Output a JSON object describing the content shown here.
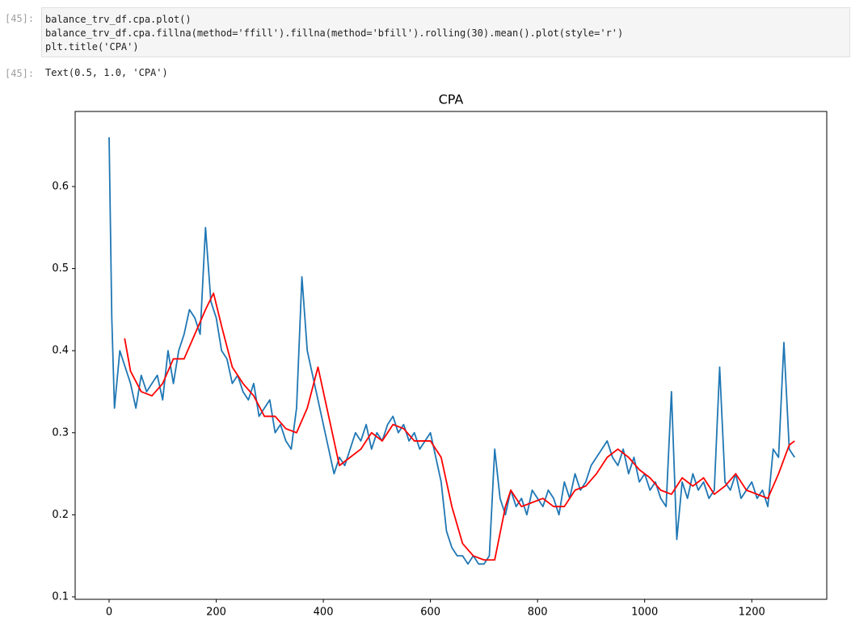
{
  "cells": {
    "input_prompt": "[45]:",
    "code": [
      "balance_trv_df.cpa.plot()",
      "balance_trv_df.cpa.fillna(method='ffill').fillna(method='bfill').rolling(30).mean().plot(style='r')",
      "plt.title('CPA')"
    ],
    "output_prompt": "[45]:",
    "output": "Text(0.5, 1.0, 'CPA')"
  },
  "chart_data": {
    "type": "line",
    "title": "CPA",
    "xlim": [
      -63.4,
      1340
    ],
    "ylim": [
      0.097,
      0.6915
    ],
    "xticks": [
      0,
      200,
      400,
      600,
      800,
      1000,
      1200
    ],
    "yticks": [
      0.1,
      0.2,
      0.3,
      0.4,
      0.5,
      0.6
    ],
    "series": [
      {
        "color": "#1f77b4",
        "x": [
          0,
          5,
          10,
          20,
          30,
          40,
          50,
          60,
          70,
          80,
          90,
          100,
          110,
          120,
          130,
          140,
          150,
          160,
          170,
          180,
          190,
          200,
          210,
          220,
          230,
          240,
          250,
          260,
          270,
          280,
          290,
          300,
          310,
          320,
          330,
          340,
          350,
          360,
          370,
          380,
          390,
          400,
          410,
          420,
          430,
          440,
          450,
          460,
          470,
          480,
          490,
          500,
          510,
          520,
          530,
          540,
          550,
          560,
          570,
          580,
          590,
          600,
          610,
          620,
          630,
          640,
          650,
          660,
          670,
          680,
          690,
          700,
          710,
          720,
          730,
          740,
          750,
          760,
          770,
          780,
          790,
          800,
          810,
          820,
          830,
          840,
          850,
          860,
          870,
          880,
          890,
          900,
          910,
          920,
          930,
          940,
          950,
          960,
          970,
          980,
          990,
          1000,
          1010,
          1020,
          1030,
          1040,
          1050,
          1060,
          1070,
          1080,
          1090,
          1100,
          1110,
          1120,
          1130,
          1140,
          1150,
          1160,
          1170,
          1180,
          1190,
          1200,
          1210,
          1220,
          1230,
          1240,
          1250,
          1260,
          1270,
          1280
        ],
        "values": [
          0.66,
          0.44,
          0.33,
          0.4,
          0.38,
          0.36,
          0.33,
          0.37,
          0.35,
          0.36,
          0.37,
          0.34,
          0.4,
          0.36,
          0.4,
          0.42,
          0.45,
          0.44,
          0.42,
          0.55,
          0.46,
          0.44,
          0.4,
          0.39,
          0.36,
          0.37,
          0.35,
          0.34,
          0.36,
          0.32,
          0.33,
          0.34,
          0.3,
          0.31,
          0.29,
          0.28,
          0.33,
          0.49,
          0.4,
          0.37,
          0.34,
          0.31,
          0.28,
          0.25,
          0.27,
          0.26,
          0.28,
          0.3,
          0.29,
          0.31,
          0.28,
          0.3,
          0.29,
          0.31,
          0.32,
          0.3,
          0.31,
          0.29,
          0.3,
          0.28,
          0.29,
          0.3,
          0.27,
          0.24,
          0.18,
          0.16,
          0.15,
          0.15,
          0.14,
          0.15,
          0.14,
          0.14,
          0.15,
          0.28,
          0.22,
          0.2,
          0.23,
          0.21,
          0.22,
          0.2,
          0.23,
          0.22,
          0.21,
          0.23,
          0.22,
          0.2,
          0.24,
          0.22,
          0.25,
          0.23,
          0.24,
          0.26,
          0.27,
          0.28,
          0.29,
          0.27,
          0.26,
          0.28,
          0.25,
          0.27,
          0.24,
          0.25,
          0.23,
          0.24,
          0.22,
          0.21,
          0.35,
          0.17,
          0.24,
          0.22,
          0.25,
          0.23,
          0.24,
          0.22,
          0.23,
          0.38,
          0.24,
          0.23,
          0.25,
          0.22,
          0.23,
          0.24,
          0.22,
          0.23,
          0.21,
          0.28,
          0.27,
          0.41,
          0.28,
          0.27
        ]
      },
      {
        "color": "#ff0000",
        "x": [
          29,
          40,
          60,
          80,
          100,
          120,
          140,
          160,
          180,
          195,
          210,
          230,
          250,
          270,
          290,
          310,
          330,
          350,
          370,
          390,
          410,
          430,
          450,
          470,
          490,
          510,
          530,
          550,
          570,
          600,
          620,
          640,
          660,
          680,
          700,
          720,
          740,
          750,
          770,
          790,
          810,
          830,
          850,
          870,
          890,
          910,
          930,
          950,
          970,
          990,
          1010,
          1030,
          1050,
          1070,
          1090,
          1110,
          1130,
          1150,
          1170,
          1190,
          1210,
          1230,
          1250,
          1270,
          1280
        ],
        "values": [
          0.415,
          0.375,
          0.35,
          0.345,
          0.36,
          0.39,
          0.39,
          0.42,
          0.45,
          0.47,
          0.43,
          0.38,
          0.36,
          0.345,
          0.32,
          0.32,
          0.305,
          0.3,
          0.33,
          0.38,
          0.32,
          0.26,
          0.27,
          0.28,
          0.3,
          0.29,
          0.31,
          0.305,
          0.29,
          0.29,
          0.27,
          0.21,
          0.165,
          0.15,
          0.145,
          0.145,
          0.21,
          0.23,
          0.21,
          0.215,
          0.22,
          0.21,
          0.21,
          0.23,
          0.235,
          0.25,
          0.27,
          0.28,
          0.27,
          0.255,
          0.245,
          0.23,
          0.225,
          0.245,
          0.235,
          0.245,
          0.225,
          0.235,
          0.25,
          0.23,
          0.225,
          0.22,
          0.25,
          0.285,
          0.29
        ]
      }
    ]
  }
}
